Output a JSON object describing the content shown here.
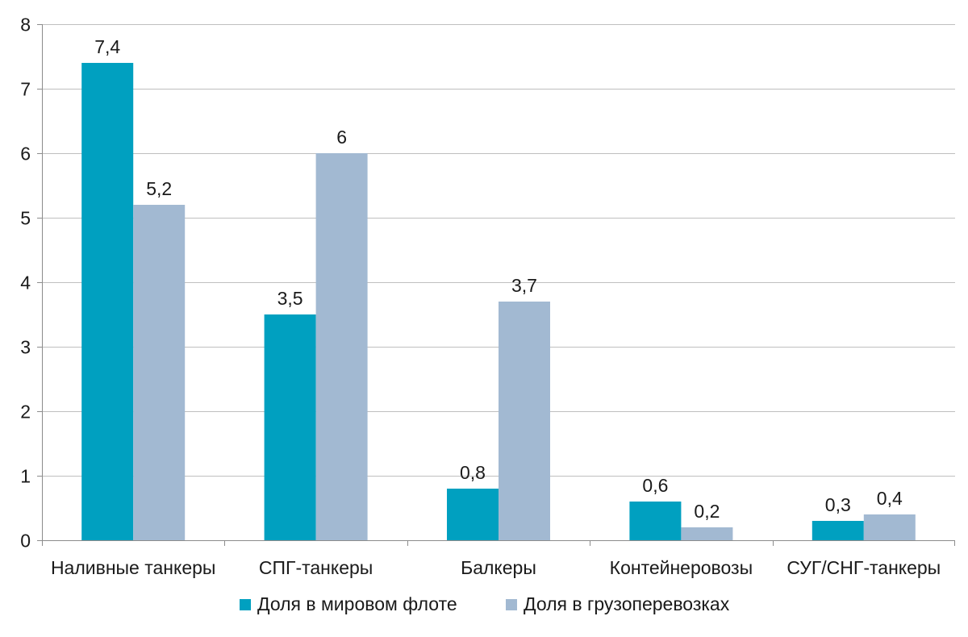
{
  "chart_data": {
    "type": "bar",
    "title": "",
    "xlabel": "",
    "ylabel": "",
    "categories": [
      "Наливные танкеры",
      "СПГ-танкеры",
      "Балкеры",
      "Контейнеровозы",
      "СУГ/СНГ-танкеры"
    ],
    "series": [
      {
        "name": "Доля в мировом флоте",
        "color": "#00a0c0",
        "values": [
          7.4,
          3.5,
          0.8,
          0.6,
          0.3
        ],
        "labels": [
          "7,4",
          "3,5",
          "0,8",
          "0,6",
          "0,3"
        ]
      },
      {
        "name": "Доля в грузоперевозках",
        "color": "#a2b9d2",
        "values": [
          5.2,
          6,
          3.7,
          0.2,
          0.4
        ],
        "labels": [
          "5,2",
          "6",
          "3,7",
          "0,2",
          "0,4"
        ]
      }
    ],
    "ylim": [
      0,
      8
    ],
    "yticks": [
      "0",
      "1",
      "2",
      "3",
      "4",
      "5",
      "6",
      "7",
      "8"
    ],
    "grid": true,
    "gridColor": "#bfbfbf",
    "legend": "bottom"
  }
}
